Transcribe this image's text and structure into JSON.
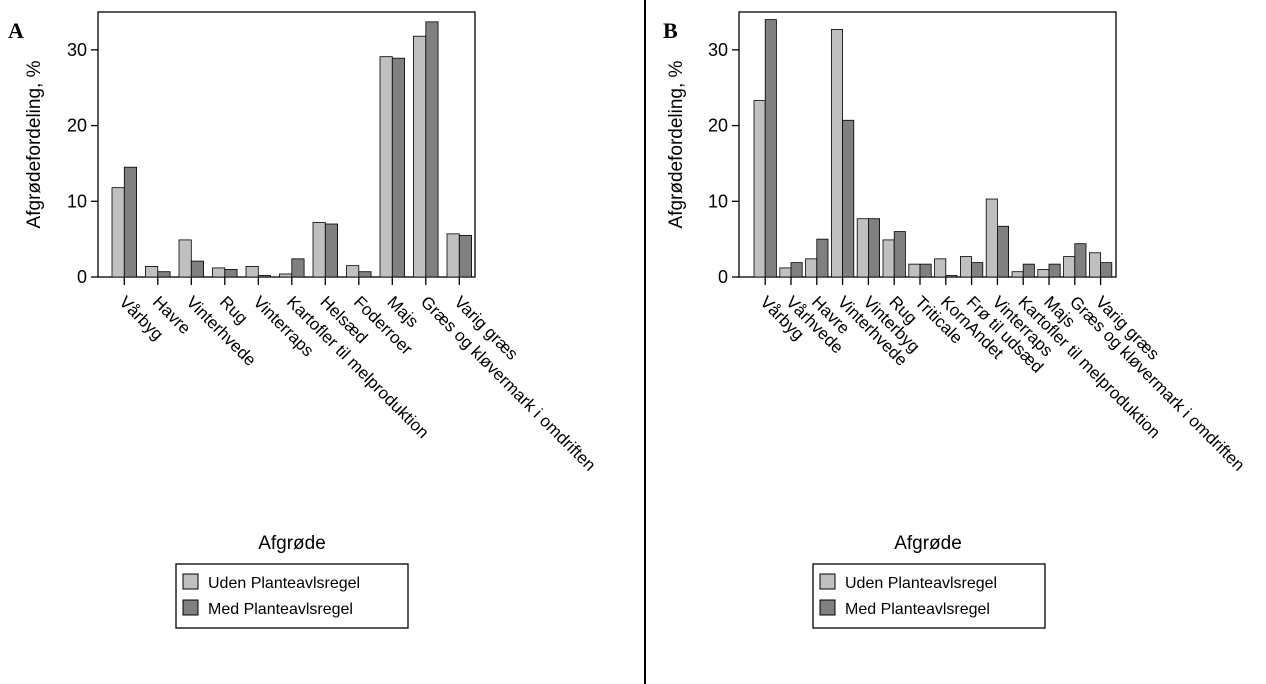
{
  "colors": {
    "uden": "#c0c0c0",
    "med": "#808080",
    "stroke": "#000000"
  },
  "chart_data": [
    {
      "type": "bar",
      "panel": "A",
      "xlabel": "Afgrøde",
      "ylabel": "Afgrødefordeling, %",
      "ylim": [
        0,
        35
      ],
      "yticks": [
        0,
        10,
        20,
        30
      ],
      "categories": [
        "Vårbyg",
        "Havre",
        "Vinterhvede",
        "Rug",
        "Vinterraps",
        "Kartofler til melproduktion",
        "Helsæd",
        "Foderroer",
        "Majs",
        "Græs og kløvermark i omdriften",
        "Varig græs"
      ],
      "series": [
        {
          "name": "Uden Planteavlsregel",
          "values": [
            11.8,
            1.4,
            4.9,
            1.2,
            1.4,
            0.4,
            7.2,
            1.5,
            29.1,
            31.8,
            5.7
          ]
        },
        {
          "name": "Med Planteavlsregel",
          "values": [
            14.5,
            0.7,
            2.1,
            1.0,
            0.2,
            2.4,
            7.0,
            0.7,
            28.9,
            33.7,
            5.5
          ]
        }
      ],
      "legend": "bottom-center",
      "grid": false
    },
    {
      "type": "bar",
      "panel": "B",
      "xlabel": "Afgrøde",
      "ylabel": "Afgrødefordeling, %",
      "ylim": [
        0,
        35
      ],
      "yticks": [
        0,
        10,
        20,
        30
      ],
      "categories": [
        "Vårbyg",
        "Vårhvede",
        "Havre",
        "Vinterhvede",
        "Vinterbyg",
        "Rug",
        "Triticale",
        "KornAndet",
        "Frø til udsæd",
        "Vinterraps",
        "Kartofler til melproduktion",
        "Majs",
        "Græs og kløvermark i omdriften",
        "Varig græs"
      ],
      "series": [
        {
          "name": "Uden Planteavlsregel",
          "values": [
            23.3,
            1.2,
            2.4,
            32.7,
            7.7,
            4.9,
            1.7,
            2.4,
            2.7,
            10.3,
            0.7,
            1.0,
            2.7,
            3.2
          ]
        },
        {
          "name": "Med Planteavlsregel",
          "values": [
            34.0,
            1.9,
            5.0,
            20.7,
            7.7,
            6.0,
            1.7,
            0.2,
            1.9,
            6.7,
            1.7,
            1.7,
            4.4,
            1.9
          ]
        }
      ],
      "legend": "bottom-center",
      "grid": false
    }
  ]
}
